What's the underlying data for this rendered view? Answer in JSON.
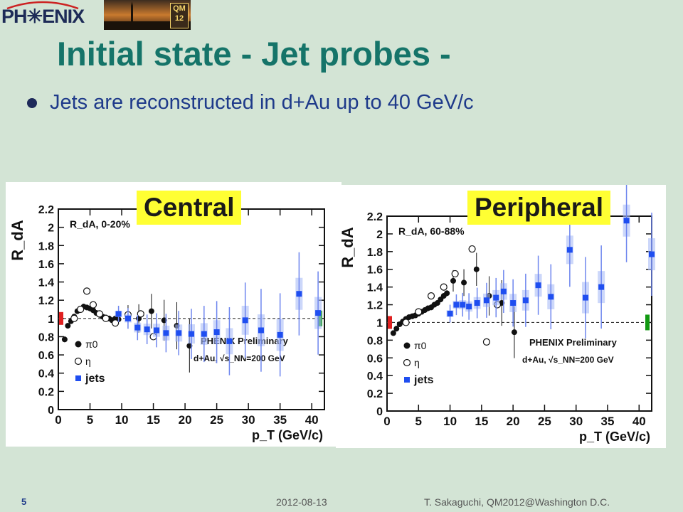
{
  "slide": {
    "title": "Initial state - Jet probes -",
    "bullet": "Jets are reconstructed in d+Au up to 40 GeV/c",
    "footer": {
      "page_number": "5",
      "date": "2012-08-13",
      "author": "T. Sakaguchi, QM2012@Washington D.C."
    }
  },
  "logos": {
    "phenix_text": "PH✳ENIX",
    "qm_badge": "QM 12"
  },
  "panel_labels": {
    "central": "Central",
    "peripheral": "Peripheral"
  },
  "colors": {
    "title": "#157469",
    "bullet_text": "#1e3a8a",
    "label_bg": "#ffff33",
    "jets": "#1f4ef0",
    "pi0": "#111111",
    "norm_red": "#e02020",
    "norm_green": "#119911"
  },
  "chart_data": [
    {
      "type": "scatter",
      "title": "R_dA, 0-20%",
      "xlabel": "p_T (GeV/c)",
      "ylabel": "R_dA",
      "xlim": [
        0,
        42
      ],
      "ylim": [
        0,
        2.2
      ],
      "xticks": [
        0,
        5,
        10,
        15,
        20,
        25,
        30,
        35,
        40
      ],
      "yticks": [
        0,
        0.2,
        0.4,
        0.6,
        0.8,
        1,
        1.2,
        1.4,
        1.6,
        1.8,
        2,
        2.2
      ],
      "reference_line": 1,
      "annotation": [
        "PHENIX Preliminary",
        "d+Au, √s_NN=200 GeV"
      ],
      "legend": [
        "π0",
        "η",
        "jets"
      ],
      "legend_position": "bottom-left",
      "series": [
        {
          "name": "π0",
          "marker": "filled-circle",
          "points": [
            {
              "x": 1.0,
              "y": 0.77
            },
            {
              "x": 1.5,
              "y": 0.92
            },
            {
              "x": 2.0,
              "y": 0.97
            },
            {
              "x": 2.5,
              "y": 1.02
            },
            {
              "x": 3.0,
              "y": 1.08
            },
            {
              "x": 3.5,
              "y": 1.1
            },
            {
              "x": 4.0,
              "y": 1.13
            },
            {
              "x": 4.5,
              "y": 1.12
            },
            {
              "x": 5.0,
              "y": 1.11
            },
            {
              "x": 5.5,
              "y": 1.09
            },
            {
              "x": 6.0,
              "y": 1.06
            },
            {
              "x": 6.5,
              "y": 1.04
            },
            {
              "x": 7.0,
              "y": 1.02
            },
            {
              "x": 7.5,
              "y": 1.01
            },
            {
              "x": 8.0,
              "y": 1.0
            },
            {
              "x": 8.5,
              "y": 0.98
            },
            {
              "x": 9.0,
              "y": 1.0
            },
            {
              "x": 9.5,
              "y": 0.99
            },
            {
              "x": 11.0,
              "y": 1.02
            },
            {
              "x": 12.7,
              "y": 1.0
            },
            {
              "x": 14.7,
              "y": 1.08
            },
            {
              "x": 16.7,
              "y": 0.98
            },
            {
              "x": 18.7,
              "y": 0.92
            },
            {
              "x": 20.7,
              "y": 0.7
            }
          ]
        },
        {
          "name": "η",
          "marker": "open-circle",
          "points": [
            {
              "x": 2.5,
              "y": 1.0
            },
            {
              "x": 3.5,
              "y": 1.1
            },
            {
              "x": 4.5,
              "y": 1.3
            },
            {
              "x": 5.5,
              "y": 1.15
            },
            {
              "x": 6.5,
              "y": 1.05
            },
            {
              "x": 7.5,
              "y": 1.0
            },
            {
              "x": 9.0,
              "y": 0.95
            },
            {
              "x": 11.0,
              "y": 1.04
            },
            {
              "x": 13.0,
              "y": 1.05
            },
            {
              "x": 15.0,
              "y": 0.8
            }
          ]
        },
        {
          "name": "jets",
          "marker": "filled-square",
          "points": [
            {
              "x": 9.5,
              "y": 1.05
            },
            {
              "x": 11.0,
              "y": 1.0
            },
            {
              "x": 12.5,
              "y": 0.9
            },
            {
              "x": 14.0,
              "y": 0.88
            },
            {
              "x": 15.5,
              "y": 0.87
            },
            {
              "x": 17.0,
              "y": 0.84
            },
            {
              "x": 19.0,
              "y": 0.84
            },
            {
              "x": 21.0,
              "y": 0.83
            },
            {
              "x": 23.0,
              "y": 0.83
            },
            {
              "x": 25.0,
              "y": 0.85
            },
            {
              "x": 27.0,
              "y": 0.75
            },
            {
              "x": 29.5,
              "y": 0.98
            },
            {
              "x": 32.0,
              "y": 0.87
            },
            {
              "x": 35.0,
              "y": 0.82
            },
            {
              "x": 38.0,
              "y": 1.27
            },
            {
              "x": 41.0,
              "y": 1.06
            }
          ]
        }
      ]
    },
    {
      "type": "scatter",
      "title": "R_dA, 60-88%",
      "xlabel": "p_T (GeV/c)",
      "ylabel": "R_dA",
      "xlim": [
        0,
        42
      ],
      "ylim": [
        0,
        2.2
      ],
      "xticks": [
        0,
        5,
        10,
        15,
        20,
        25,
        30,
        35,
        40
      ],
      "yticks": [
        0,
        0.2,
        0.4,
        0.6,
        0.8,
        1,
        1.2,
        1.4,
        1.6,
        1.8,
        2,
        2.2
      ],
      "reference_line": 1,
      "annotation": [
        "PHENIX Preliminary",
        "d+Au, √s_NN=200 GeV"
      ],
      "legend": [
        "π0",
        "η",
        "jets"
      ],
      "legend_position": "bottom-left",
      "series": [
        {
          "name": "π0",
          "marker": "filled-circle",
          "points": [
            {
              "x": 1.0,
              "y": 0.88
            },
            {
              "x": 1.5,
              "y": 0.93
            },
            {
              "x": 2.0,
              "y": 0.98
            },
            {
              "x": 2.5,
              "y": 1.01
            },
            {
              "x": 3.0,
              "y": 1.04
            },
            {
              "x": 3.5,
              "y": 1.06
            },
            {
              "x": 4.0,
              "y": 1.07
            },
            {
              "x": 4.5,
              "y": 1.08
            },
            {
              "x": 5.0,
              "y": 1.1
            },
            {
              "x": 5.5,
              "y": 1.12
            },
            {
              "x": 6.0,
              "y": 1.14
            },
            {
              "x": 6.5,
              "y": 1.16
            },
            {
              "x": 7.0,
              "y": 1.17
            },
            {
              "x": 7.5,
              "y": 1.2
            },
            {
              "x": 8.0,
              "y": 1.22
            },
            {
              "x": 8.5,
              "y": 1.26
            },
            {
              "x": 9.0,
              "y": 1.3
            },
            {
              "x": 9.5,
              "y": 1.33
            },
            {
              "x": 10.5,
              "y": 1.47
            },
            {
              "x": 12.2,
              "y": 1.45
            },
            {
              "x": 14.2,
              "y": 1.6
            },
            {
              "x": 16.2,
              "y": 1.3
            },
            {
              "x": 18.2,
              "y": 1.22
            },
            {
              "x": 20.2,
              "y": 0.89
            }
          ]
        },
        {
          "name": "η",
          "marker": "open-circle",
          "points": [
            {
              "x": 3.0,
              "y": 1.0
            },
            {
              "x": 5.0,
              "y": 1.12
            },
            {
              "x": 7.0,
              "y": 1.3
            },
            {
              "x": 9.0,
              "y": 1.4
            },
            {
              "x": 10.8,
              "y": 1.55
            },
            {
              "x": 13.5,
              "y": 1.83
            },
            {
              "x": 15.8,
              "y": 0.78
            },
            {
              "x": 17.5,
              "y": 1.2
            }
          ]
        },
        {
          "name": "jets",
          "marker": "filled-square",
          "points": [
            {
              "x": 10.0,
              "y": 1.1
            },
            {
              "x": 11.0,
              "y": 1.2
            },
            {
              "x": 12.0,
              "y": 1.2
            },
            {
              "x": 13.0,
              "y": 1.18
            },
            {
              "x": 14.3,
              "y": 1.22
            },
            {
              "x": 15.8,
              "y": 1.25
            },
            {
              "x": 17.3,
              "y": 1.28
            },
            {
              "x": 18.5,
              "y": 1.35
            },
            {
              "x": 20.0,
              "y": 1.22
            },
            {
              "x": 22.0,
              "y": 1.25
            },
            {
              "x": 24.0,
              "y": 1.42
            },
            {
              "x": 26.0,
              "y": 1.29
            },
            {
              "x": 29.0,
              "y": 1.82
            },
            {
              "x": 31.5,
              "y": 1.28
            },
            {
              "x": 34.0,
              "y": 1.4
            },
            {
              "x": 38.0,
              "y": 2.15
            },
            {
              "x": 42.0,
              "y": 1.77
            }
          ]
        }
      ]
    }
  ]
}
